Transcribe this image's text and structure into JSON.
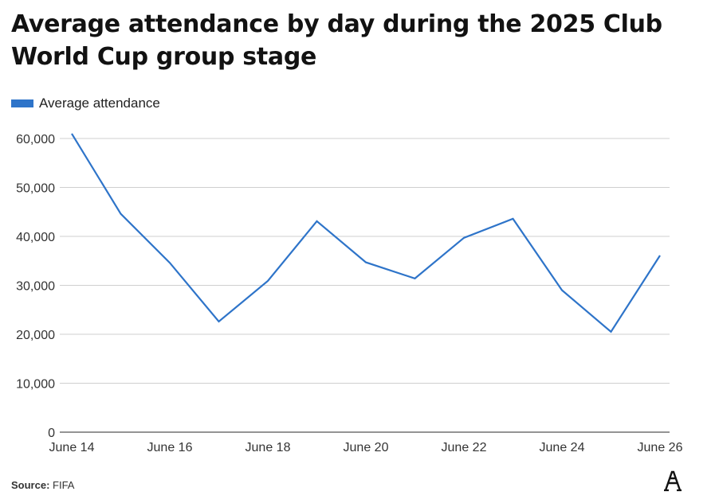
{
  "chart_data": {
    "type": "line",
    "title": "Average attendance by day during the 2025 Club World Cup group stage",
    "xlabel": "",
    "ylabel": "",
    "categories": [
      "June 14",
      "June 15",
      "June 16",
      "June 17",
      "June 18",
      "June 19",
      "June 20",
      "June 21",
      "June 22",
      "June 23",
      "June 24",
      "June 25",
      "June 26"
    ],
    "x_tick_labels": [
      "June 14",
      "June 16",
      "June 18",
      "June 20",
      "June 22",
      "June 24",
      "June 26"
    ],
    "y_ticks": [
      0,
      10000,
      20000,
      30000,
      40000,
      50000,
      60000
    ],
    "y_tick_labels": [
      "0",
      "10,000",
      "20,000",
      "30,000",
      "40,000",
      "50,000",
      "60,000"
    ],
    "ylim": [
      0,
      60000
    ],
    "grid": true,
    "legend_position": "top-left",
    "series": [
      {
        "name": "Average attendance",
        "color": "#2e74c9",
        "values": [
          61000,
          44600,
          34600,
          22600,
          30900,
          43100,
          34700,
          31400,
          39700,
          43600,
          29000,
          20500,
          36100
        ]
      }
    ]
  },
  "source": {
    "label": "Source:",
    "text": "FIFA"
  },
  "logo": {
    "icon": "the-athletic-logo-icon",
    "text": "A"
  }
}
